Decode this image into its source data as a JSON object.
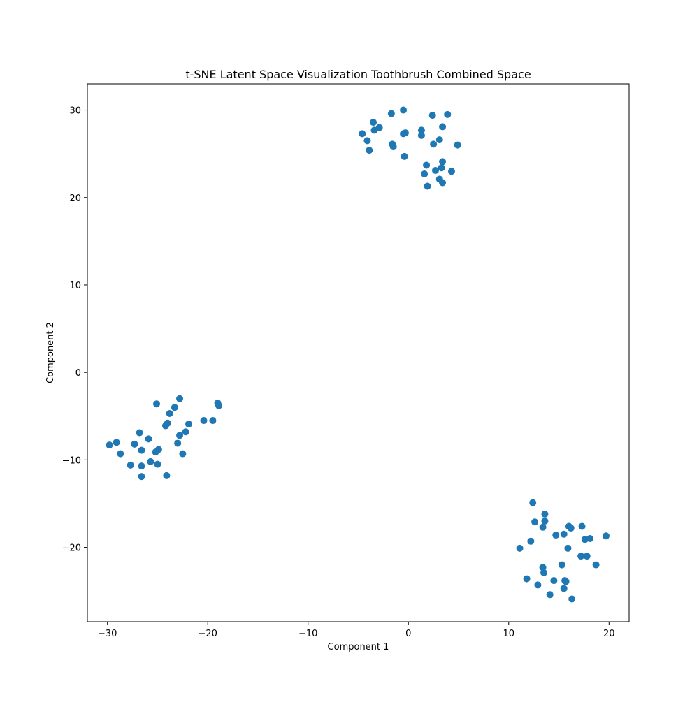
{
  "chart_data": {
    "type": "scatter",
    "title": "t-SNE Latent Space Visualization Toothbrush Combined Space",
    "xlabel": "Component 1",
    "ylabel": "Component 2",
    "xlim": [
      -32,
      22
    ],
    "ylim": [
      -28.5,
      33
    ],
    "xticks": [
      -30,
      -20,
      -10,
      0,
      10,
      20
    ],
    "yticks": [
      -20,
      -10,
      0,
      10,
      20,
      30
    ],
    "xtick_labels": [
      "−30",
      "−20",
      "−10",
      "0",
      "10",
      "20"
    ],
    "ytick_labels": [
      "−20",
      "−10",
      "0",
      "10",
      "20",
      "30"
    ],
    "grid": false,
    "legend": "none",
    "marker_color": "#1f77b4",
    "points": [
      [
        -29.8,
        -8.3
      ],
      [
        -29.1,
        -8.0
      ],
      [
        -28.7,
        -9.3
      ],
      [
        -27.7,
        -10.6
      ],
      [
        -27.3,
        -8.2
      ],
      [
        -26.8,
        -6.9
      ],
      [
        -26.6,
        -8.9
      ],
      [
        -26.6,
        -10.7
      ],
      [
        -26.6,
        -11.9
      ],
      [
        -25.9,
        -7.6
      ],
      [
        -25.7,
        -10.2
      ],
      [
        -25.2,
        -9.1
      ],
      [
        -25.0,
        -10.5
      ],
      [
        -24.9,
        -8.8
      ],
      [
        -25.1,
        -3.6
      ],
      [
        -24.2,
        -6.1
      ],
      [
        -24.0,
        -5.8
      ],
      [
        -24.1,
        -11.8
      ],
      [
        -23.8,
        -4.7
      ],
      [
        -23.3,
        -4.0
      ],
      [
        -23.0,
        -8.1
      ],
      [
        -22.8,
        -7.2
      ],
      [
        -22.8,
        -3.0
      ],
      [
        -22.5,
        -9.3
      ],
      [
        -22.2,
        -6.8
      ],
      [
        -21.9,
        -5.9
      ],
      [
        -20.4,
        -5.5
      ],
      [
        -19.5,
        -5.5
      ],
      [
        -19.0,
        -3.5
      ],
      [
        -18.9,
        -3.8
      ],
      [
        -4.6,
        27.3
      ],
      [
        -4.1,
        26.5
      ],
      [
        -3.9,
        25.4
      ],
      [
        -3.5,
        28.6
      ],
      [
        -3.4,
        27.7
      ],
      [
        -2.9,
        28.0
      ],
      [
        -1.7,
        29.6
      ],
      [
        -1.6,
        26.1
      ],
      [
        -1.5,
        25.8
      ],
      [
        -0.5,
        30.0
      ],
      [
        -0.5,
        27.3
      ],
      [
        -0.3,
        27.4
      ],
      [
        -0.4,
        24.7
      ],
      [
        1.3,
        27.7
      ],
      [
        1.3,
        27.1
      ],
      [
        1.6,
        22.7
      ],
      [
        1.8,
        23.7
      ],
      [
        1.9,
        21.3
      ],
      [
        2.4,
        29.4
      ],
      [
        2.5,
        26.1
      ],
      [
        2.7,
        23.1
      ],
      [
        3.1,
        26.6
      ],
      [
        3.1,
        22.1
      ],
      [
        3.3,
        23.4
      ],
      [
        3.4,
        24.1
      ],
      [
        3.4,
        28.1
      ],
      [
        3.4,
        21.7
      ],
      [
        3.9,
        29.5
      ],
      [
        4.3,
        23.0
      ],
      [
        4.9,
        26.0
      ],
      [
        11.1,
        -20.1
      ],
      [
        11.8,
        -23.6
      ],
      [
        12.2,
        -19.3
      ],
      [
        12.4,
        -14.9
      ],
      [
        12.6,
        -17.1
      ],
      [
        12.9,
        -24.3
      ],
      [
        13.4,
        -17.7
      ],
      [
        13.4,
        -22.3
      ],
      [
        13.5,
        -22.9
      ],
      [
        13.6,
        -17.0
      ],
      [
        13.6,
        -16.2
      ],
      [
        14.1,
        -25.4
      ],
      [
        14.5,
        -23.8
      ],
      [
        14.7,
        -18.6
      ],
      [
        15.3,
        -22.0
      ],
      [
        15.5,
        -18.5
      ],
      [
        15.5,
        -24.7
      ],
      [
        15.6,
        -23.8
      ],
      [
        15.7,
        -23.9
      ],
      [
        15.9,
        -20.1
      ],
      [
        16.0,
        -17.6
      ],
      [
        16.2,
        -17.8
      ],
      [
        16.3,
        -25.9
      ],
      [
        17.2,
        -21.0
      ],
      [
        17.3,
        -17.6
      ],
      [
        17.6,
        -19.1
      ],
      [
        17.8,
        -21.0
      ],
      [
        18.1,
        -19.0
      ],
      [
        18.7,
        -22.0
      ],
      [
        19.7,
        -18.7
      ]
    ]
  }
}
